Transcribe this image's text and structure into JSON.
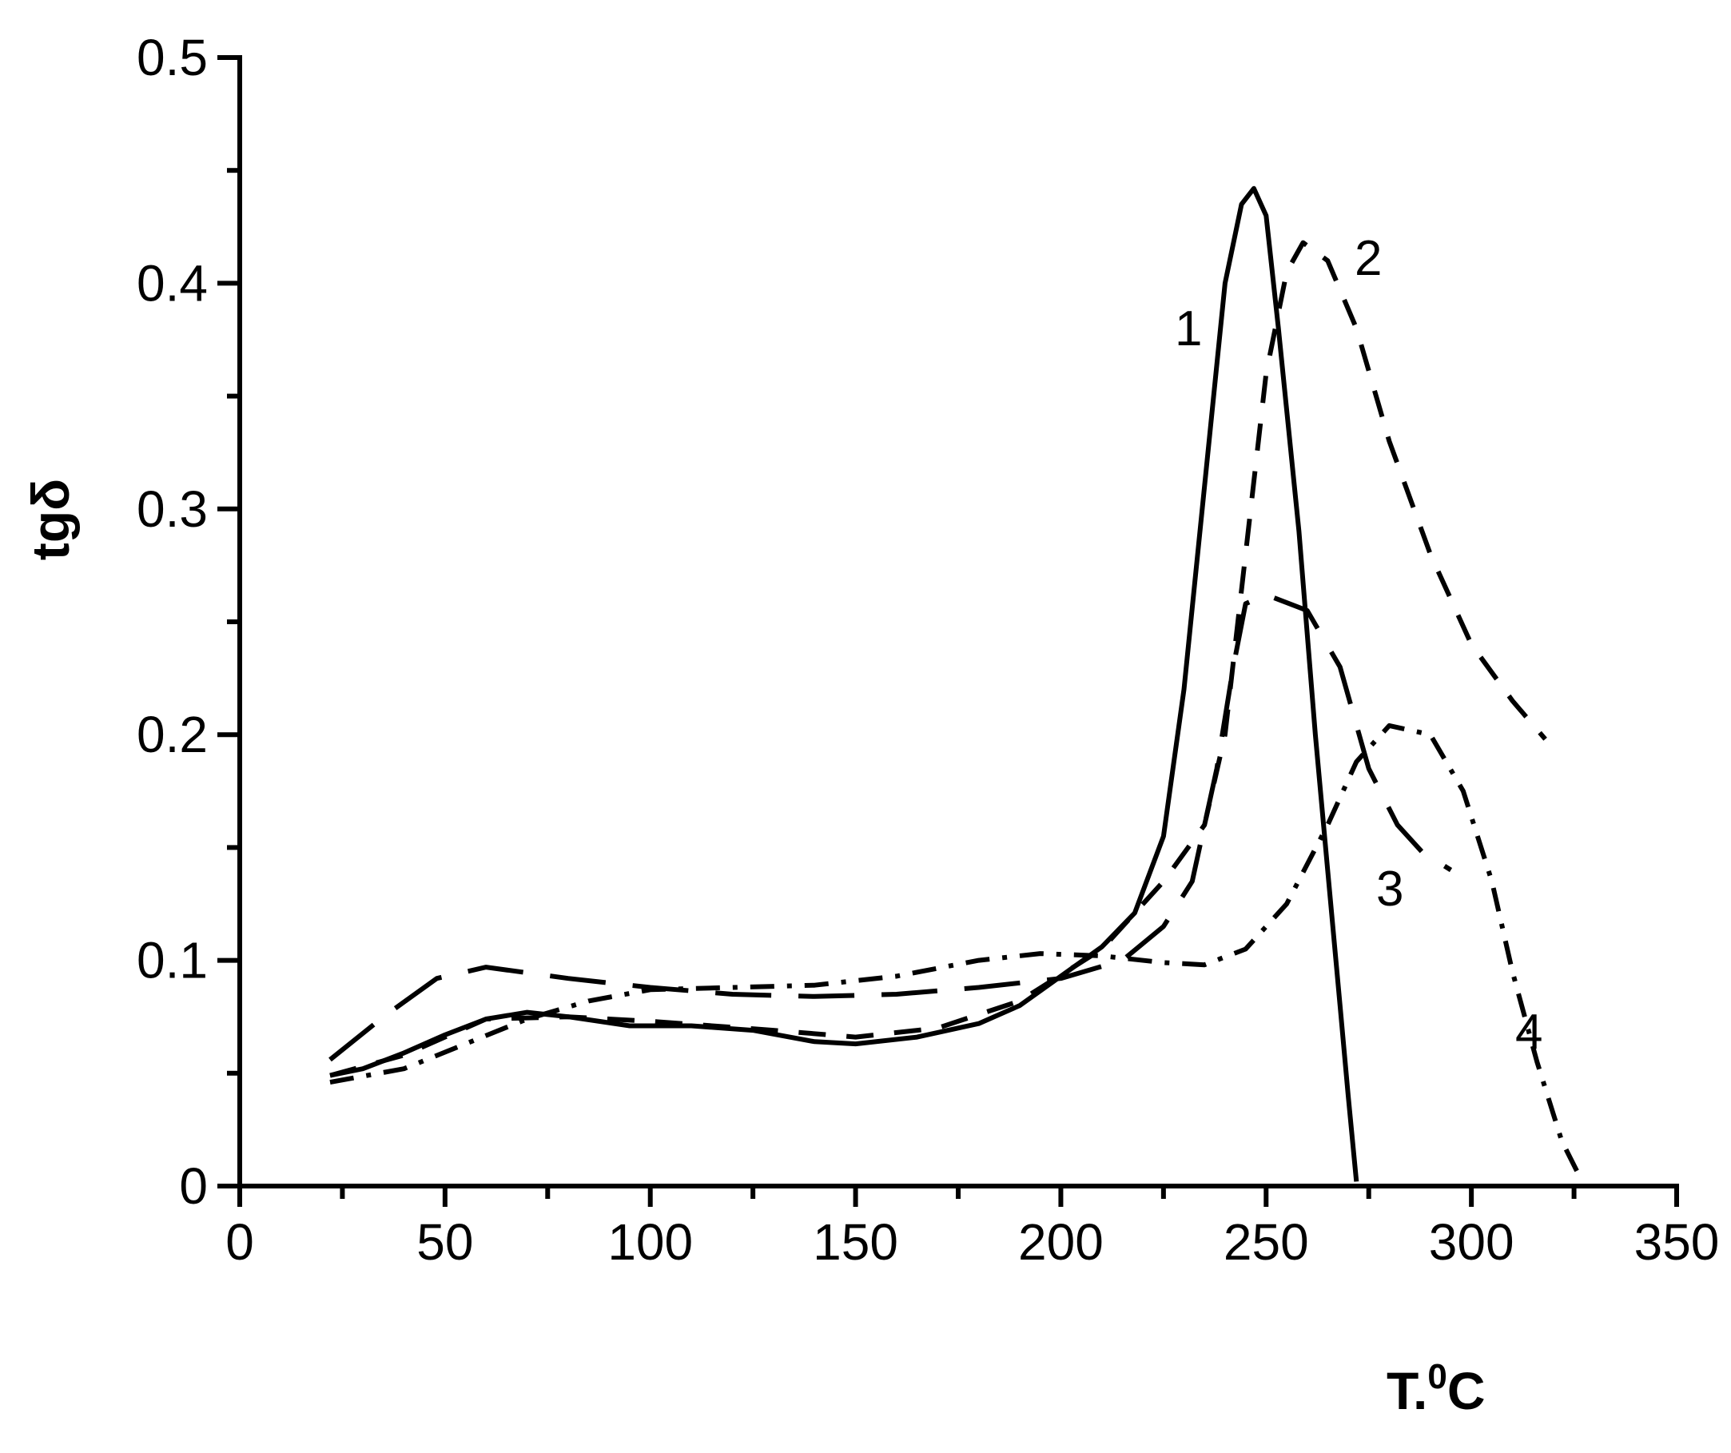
{
  "chart_data": {
    "type": "line",
    "title": "",
    "xlabel": "T.",
    "xlabel_sup": "0",
    "xlabel_unit": "C",
    "ylabel": "tgδ",
    "xlim": [
      0,
      350
    ],
    "ylim": [
      0,
      0.5
    ],
    "x_ticks": [
      "0",
      "50",
      "100",
      "150",
      "200",
      "250",
      "300",
      "350"
    ],
    "y_ticks": [
      "0",
      "0.1",
      "0.2",
      "0.3",
      "0.4",
      "0.5"
    ],
    "grid": false,
    "legend": "none (curve labels placed inline)",
    "series": [
      {
        "label": "1",
        "line_style": "solid",
        "points": [
          [
            22,
            0.049
          ],
          [
            30,
            0.052
          ],
          [
            40,
            0.059
          ],
          [
            50,
            0.067
          ],
          [
            60,
            0.074
          ],
          [
            70,
            0.077
          ],
          [
            80,
            0.075
          ],
          [
            95,
            0.071
          ],
          [
            110,
            0.071
          ],
          [
            125,
            0.069
          ],
          [
            140,
            0.064
          ],
          [
            150,
            0.063
          ],
          [
            165,
            0.066
          ],
          [
            180,
            0.072
          ],
          [
            190,
            0.08
          ],
          [
            200,
            0.093
          ],
          [
            210,
            0.106
          ],
          [
            218,
            0.121
          ],
          [
            225,
            0.155
          ],
          [
            230,
            0.22
          ],
          [
            235,
            0.31
          ],
          [
            240,
            0.4
          ],
          [
            244,
            0.435
          ],
          [
            247,
            0.442
          ],
          [
            250,
            0.43
          ],
          [
            253,
            0.38
          ],
          [
            258,
            0.29
          ],
          [
            262,
            0.2
          ],
          [
            265,
            0.14
          ],
          [
            268,
            0.08
          ],
          [
            270,
            0.04
          ],
          [
            272,
            0.002
          ]
        ]
      },
      {
        "label": "2",
        "line_style": "dashed",
        "points": [
          [
            22,
            0.049
          ],
          [
            40,
            0.058
          ],
          [
            60,
            0.074
          ],
          [
            80,
            0.075
          ],
          [
            100,
            0.073
          ],
          [
            130,
            0.069
          ],
          [
            150,
            0.066
          ],
          [
            170,
            0.07
          ],
          [
            190,
            0.082
          ],
          [
            210,
            0.105
          ],
          [
            225,
            0.135
          ],
          [
            235,
            0.16
          ],
          [
            240,
            0.2
          ],
          [
            245,
            0.28
          ],
          [
            250,
            0.36
          ],
          [
            255,
            0.405
          ],
          [
            259,
            0.418
          ],
          [
            265,
            0.41
          ],
          [
            272,
            0.38
          ],
          [
            280,
            0.33
          ],
          [
            290,
            0.28
          ],
          [
            300,
            0.24
          ],
          [
            310,
            0.215
          ],
          [
            318,
            0.198
          ]
        ]
      },
      {
        "label": "3",
        "line_style": "long-dash",
        "points": [
          [
            22,
            0.056
          ],
          [
            35,
            0.075
          ],
          [
            48,
            0.092
          ],
          [
            60,
            0.097
          ],
          [
            80,
            0.092
          ],
          [
            100,
            0.088
          ],
          [
            120,
            0.085
          ],
          [
            140,
            0.084
          ],
          [
            160,
            0.085
          ],
          [
            180,
            0.088
          ],
          [
            200,
            0.092
          ],
          [
            215,
            0.1
          ],
          [
            225,
            0.115
          ],
          [
            232,
            0.135
          ],
          [
            238,
            0.185
          ],
          [
            242,
            0.23
          ],
          [
            245,
            0.258
          ],
          [
            250,
            0.262
          ],
          [
            260,
            0.255
          ],
          [
            268,
            0.23
          ],
          [
            275,
            0.185
          ],
          [
            282,
            0.16
          ],
          [
            288,
            0.148
          ],
          [
            295,
            0.14
          ]
        ]
      },
      {
        "label": "4",
        "line_style": "dash-dot",
        "points": [
          [
            22,
            0.046
          ],
          [
            40,
            0.052
          ],
          [
            55,
            0.063
          ],
          [
            70,
            0.074
          ],
          [
            85,
            0.082
          ],
          [
            100,
            0.087
          ],
          [
            120,
            0.088
          ],
          [
            140,
            0.089
          ],
          [
            160,
            0.093
          ],
          [
            180,
            0.1
          ],
          [
            195,
            0.103
          ],
          [
            210,
            0.102
          ],
          [
            225,
            0.099
          ],
          [
            235,
            0.098
          ],
          [
            245,
            0.105
          ],
          [
            255,
            0.125
          ],
          [
            265,
            0.16
          ],
          [
            272,
            0.188
          ],
          [
            280,
            0.204
          ],
          [
            290,
            0.2
          ],
          [
            298,
            0.175
          ],
          [
            305,
            0.135
          ],
          [
            310,
            0.095
          ],
          [
            316,
            0.055
          ],
          [
            322,
            0.02
          ],
          [
            327,
            0.002
          ]
        ]
      }
    ]
  }
}
